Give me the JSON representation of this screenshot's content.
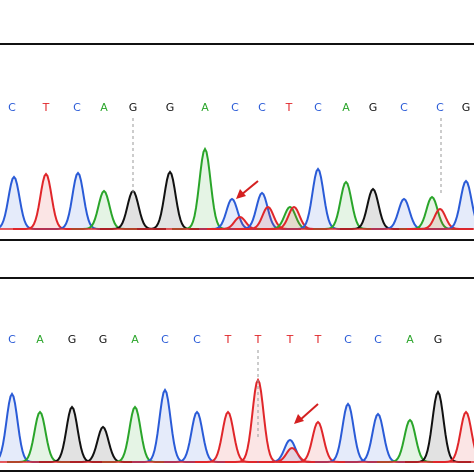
{
  "panels": [
    {
      "bases": [
        "C",
        "T",
        "C",
        "A",
        "G",
        "G",
        "A",
        "C",
        "C",
        "T",
        "C",
        "A",
        "G",
        "C",
        "C",
        "G"
      ]
    },
    {
      "bases": [
        "C",
        "A",
        "G",
        "G",
        "A",
        "C",
        "C",
        "T",
        "T",
        "T",
        "T",
        "C",
        "C",
        "A",
        "G"
      ]
    }
  ],
  "base_colors": {
    "A": "#2aa52a",
    "C": "#2a5bd7",
    "G": "#111111",
    "T": "#e0262a"
  }
}
